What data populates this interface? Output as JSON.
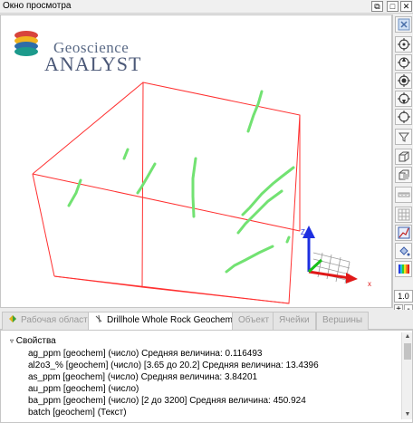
{
  "window": {
    "title": "Окно просмотра"
  },
  "logo": {
    "line1": "Geoscience",
    "line2": "ANALYST"
  },
  "toolbar": {
    "zoom_value": "1.0",
    "plus": "+",
    "minus": "-"
  },
  "tabs": [
    {
      "label": "Рабочая область"
    },
    {
      "label": "Drillhole Whole Rock Geochemistry"
    },
    {
      "label": "Объект"
    },
    {
      "label": "Ячейки"
    },
    {
      "label": "Вершины"
    }
  ],
  "properties": {
    "group": "Свойства",
    "rows": [
      "ag_ppm [geochem] (число) Средняя величина: 0.116493",
      "al2o3_% [geochem] (число)  [3.65 до 20.2] Средняя величина: 13.4396",
      "as_ppm [geochem] (число) Средняя величина: 3.84201",
      "au_ppm [geochem] (число)",
      "ba_ppm [geochem] (число)  [2 до 3200] Средняя величина: 450.924",
      "batch [geochem] (Текст)"
    ]
  },
  "colors": {
    "box": "#ff2a2a",
    "drillholes": "#6ee06e",
    "axis_x": "#e01010",
    "axis_y": "#20c020",
    "axis_z": "#1020e0"
  }
}
